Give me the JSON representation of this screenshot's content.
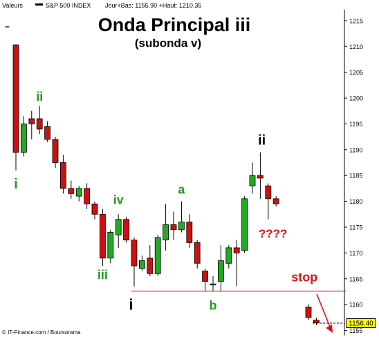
{
  "header": {
    "valeurs_label": "Valeurs",
    "legend_symbol": "S&P 500 INDEX",
    "stats": "Jour+Bas: 1155.90 +Haut: 1210.35",
    "minus_sign": "–"
  },
  "footer": {
    "source": "© IT-Finance.com / Boursorama"
  },
  "chart_data": {
    "type": "candlestick",
    "title": "Onda Principal iii",
    "subtitle": "(subonda v)",
    "ylim": [
      1154,
      1219
    ],
    "y_ticks": [
      1155,
      1160,
      1165,
      1170,
      1175,
      1180,
      1185,
      1190,
      1195,
      1200,
      1205,
      1210,
      1215
    ],
    "grid": false,
    "up_color": "#22aa22",
    "down_color": "#cc1111",
    "last_price": "1156.40",
    "last_value": 1156.4,
    "candles": [
      {
        "o": 1210.3,
        "h": 1210.4,
        "l": 1186.0,
        "c": 1189.5
      },
      {
        "o": 1189.5,
        "h": 1196.5,
        "l": 1188.7,
        "c": 1195.0
      },
      {
        "o": 1196.0,
        "h": 1197.5,
        "l": 1192.0,
        "c": 1195.0
      },
      {
        "o": 1196.0,
        "h": 1198.5,
        "l": 1193.0,
        "c": 1194.0
      },
      {
        "o": 1194.5,
        "h": 1195.5,
        "l": 1191.5,
        "c": 1192.0
      },
      {
        "o": 1192.0,
        "h": 1192.5,
        "l": 1186.5,
        "c": 1187.5
      },
      {
        "o": 1187.5,
        "h": 1189.0,
        "l": 1181.5,
        "c": 1182.5
      },
      {
        "o": 1182.5,
        "h": 1184.0,
        "l": 1180.5,
        "c": 1181.5
      },
      {
        "o": 1181.0,
        "h": 1183.0,
        "l": 1180.0,
        "c": 1182.5
      },
      {
        "o": 1182.5,
        "h": 1183.5,
        "l": 1178.5,
        "c": 1179.5
      },
      {
        "o": 1179.5,
        "h": 1180.0,
        "l": 1176.5,
        "c": 1177.5
      },
      {
        "o": 1177.5,
        "h": 1178.5,
        "l": 1167.5,
        "c": 1169.0
      },
      {
        "o": 1169.0,
        "h": 1174.5,
        "l": 1168.0,
        "c": 1174.0
      },
      {
        "o": 1173.5,
        "h": 1177.5,
        "l": 1171.0,
        "c": 1176.5
      },
      {
        "o": 1176.5,
        "h": 1177.0,
        "l": 1172.0,
        "c": 1172.5
      },
      {
        "o": 1172.5,
        "h": 1173.0,
        "l": 1163.5,
        "c": 1167.5
      },
      {
        "o": 1167.0,
        "h": 1169.5,
        "l": 1166.5,
        "c": 1168.5
      },
      {
        "o": 1169.0,
        "h": 1171.5,
        "l": 1165.5,
        "c": 1166.0
      },
      {
        "o": 1166.0,
        "h": 1173.5,
        "l": 1165.5,
        "c": 1173.0
      },
      {
        "o": 1172.5,
        "h": 1179.5,
        "l": 1170.5,
        "c": 1175.5
      },
      {
        "o": 1175.5,
        "h": 1178.0,
        "l": 1172.5,
        "c": 1174.5
      },
      {
        "o": 1174.5,
        "h": 1180.0,
        "l": 1174.0,
        "c": 1176.0
      },
      {
        "o": 1176.0,
        "h": 1177.5,
        "l": 1171.0,
        "c": 1172.0
      },
      {
        "o": 1172.0,
        "h": 1172.5,
        "l": 1167.0,
        "c": 1168.0
      },
      {
        "o": 1166.5,
        "h": 1167.0,
        "l": 1162.5,
        "c": 1164.5
      },
      {
        "o": 1164.0,
        "h": 1165.5,
        "l": 1162.5,
        "c": 1164.0
      },
      {
        "o": 1164.5,
        "h": 1171.5,
        "l": 1162.5,
        "c": 1168.5
      },
      {
        "o": 1168.0,
        "h": 1171.5,
        "l": 1167.0,
        "c": 1171.0
      },
      {
        "o": 1171.0,
        "h": 1172.5,
        "l": 1163.5,
        "c": 1170.0
      },
      {
        "o": 1170.5,
        "h": 1181.0,
        "l": 1170.0,
        "c": 1180.5
      },
      {
        "o": 1183.0,
        "h": 1187.5,
        "l": 1181.5,
        "c": 1185.0
      },
      {
        "o": 1185.0,
        "h": 1189.5,
        "l": 1180.5,
        "c": 1184.5
      },
      {
        "o": 1183.0,
        "h": 1183.5,
        "l": 1176.5,
        "c": 1180.5
      },
      {
        "o": 1180.5,
        "h": 1181.0,
        "l": 1179.0,
        "c": 1179.5
      },
      {
        "o": 1159.5,
        "h": 1160.0,
        "l": 1157.0,
        "c": 1157.5
      },
      {
        "o": 1157.0,
        "h": 1157.5,
        "l": 1156.0,
        "c": 1156.5
      }
    ],
    "annotations": [
      {
        "text": "i",
        "color": "#229922",
        "size": 20,
        "index": 0,
        "value": 1182.5
      },
      {
        "text": "ii",
        "color": "#229922",
        "size": 18,
        "index": 3,
        "value": 1199.5
      },
      {
        "text": "iii",
        "color": "#229922",
        "size": 18,
        "index": 11,
        "value": 1165.0
      },
      {
        "text": "iv",
        "color": "#229922",
        "size": 18,
        "index": 13,
        "value": 1179.5
      },
      {
        "text": "a",
        "color": "#229922",
        "size": 18,
        "index": 21,
        "value": 1181.5
      },
      {
        "text": "b",
        "color": "#229922",
        "size": 18,
        "index": 25,
        "value": 1159.0
      },
      {
        "text": "i",
        "color": "#000000",
        "size": 22,
        "index": 14.6,
        "value": 1159.0
      },
      {
        "text": "ii",
        "color": "#000000",
        "size": 20,
        "index": 31.2,
        "value": 1191.0
      },
      {
        "text": "????",
        "color": "#dd1111",
        "size": 17,
        "index": 32.6,
        "value": 1173.0
      },
      {
        "text": "stop",
        "color": "#dd1111",
        "size": 18,
        "index": 36.6,
        "value": 1164.5
      }
    ],
    "stop_level": 1162.6
  }
}
